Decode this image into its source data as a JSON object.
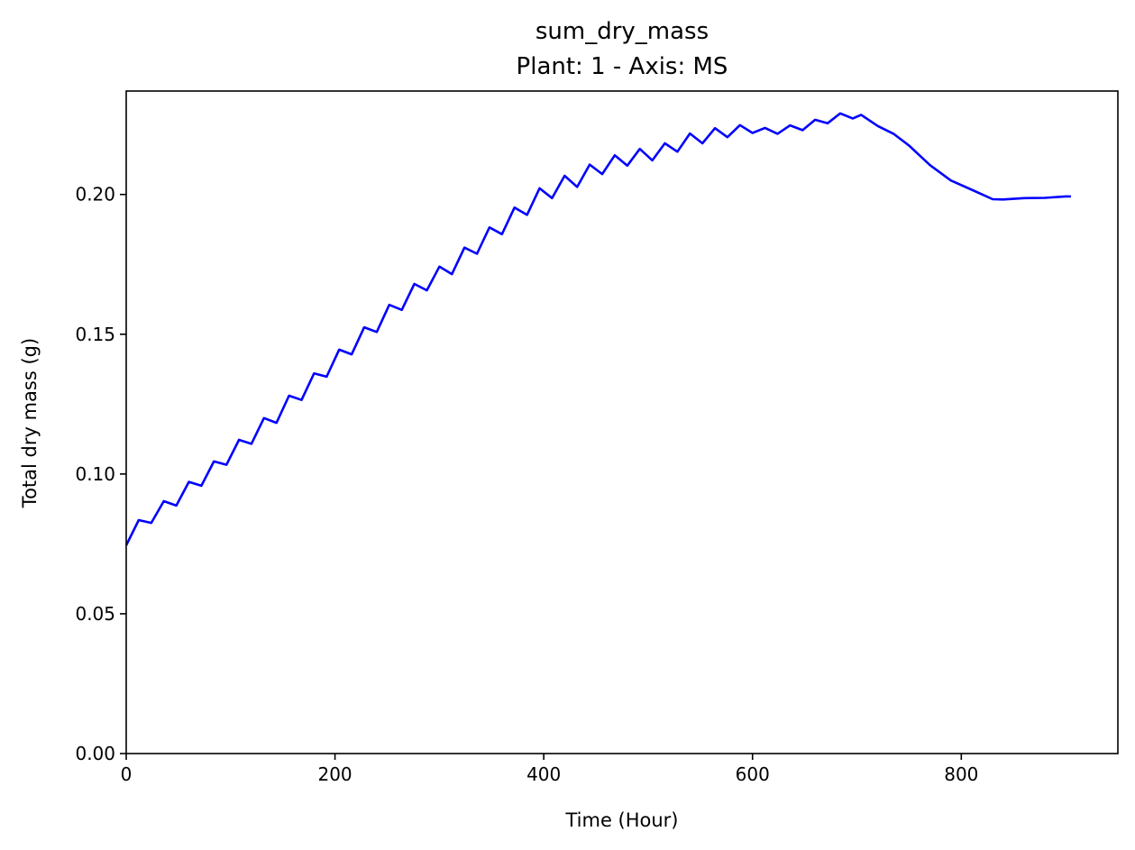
{
  "chart_data": {
    "type": "line",
    "title": "sum_dry_mass",
    "subtitle": "Plant: 1 - Axis: MS",
    "xlabel": "Time (Hour)",
    "ylabel": "Total dry mass (g)",
    "xlim": [
      0,
      950
    ],
    "ylim": [
      0,
      0.237
    ],
    "xticks": [
      0,
      200,
      400,
      600,
      800
    ],
    "yticks": [
      0.0,
      0.05,
      0.1,
      0.15,
      0.2
    ],
    "xtick_labels": [
      "0",
      "200",
      "400",
      "600",
      "800"
    ],
    "ytick_labels": [
      "0.00",
      "0.05",
      "0.10",
      "0.15",
      "0.20"
    ],
    "grid": false,
    "legend": "none",
    "series": [
      {
        "color": "#0000ff",
        "x": [
          0,
          12,
          24,
          36,
          48,
          60,
          72,
          84,
          96,
          108,
          120,
          132,
          144,
          156,
          168,
          180,
          192,
          204,
          216,
          228,
          240,
          252,
          264,
          276,
          288,
          300,
          312,
          324,
          336,
          348,
          360,
          372,
          384,
          396,
          408,
          420,
          432,
          444,
          456,
          468,
          480,
          492,
          504,
          516,
          528,
          540,
          552,
          564,
          576,
          588,
          600,
          612,
          624,
          636,
          648,
          660,
          672,
          684,
          696,
          704,
          720,
          735,
          750,
          770,
          790,
          810,
          830,
          840,
          860,
          880,
          900,
          905
        ],
        "y": [
          0.0745,
          0.0835,
          0.0825,
          0.0903,
          0.0887,
          0.0972,
          0.0958,
          0.1045,
          0.1033,
          0.1122,
          0.1108,
          0.12,
          0.1183,
          0.128,
          0.1265,
          0.136,
          0.1348,
          0.1445,
          0.1428,
          0.1525,
          0.1508,
          0.1605,
          0.1587,
          0.168,
          0.1657,
          0.1742,
          0.1715,
          0.181,
          0.1788,
          0.1882,
          0.1858,
          0.1953,
          0.1927,
          0.2022,
          0.1987,
          0.2067,
          0.2027,
          0.2107,
          0.2073,
          0.214,
          0.2103,
          0.2163,
          0.2122,
          0.2183,
          0.2153,
          0.2218,
          0.2183,
          0.2237,
          0.2205,
          0.2248,
          0.222,
          0.2238,
          0.2217,
          0.2247,
          0.223,
          0.2267,
          0.2255,
          0.229,
          0.2272,
          0.2285,
          0.2245,
          0.2217,
          0.2175,
          0.2105,
          0.205,
          0.2017,
          0.1983,
          0.1982,
          0.1987,
          0.1988,
          0.1993,
          0.1993
        ]
      }
    ]
  }
}
